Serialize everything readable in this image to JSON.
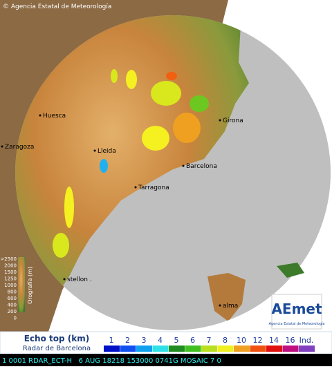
{
  "header": {
    "copyright": "© Agencia Estatal de Meteorología"
  },
  "map": {
    "cities": [
      "Huesca",
      "Zaragoza",
      "Lleida",
      "Barcelona",
      "Girona",
      "Tarragona",
      "stellon .",
      "alma"
    ]
  },
  "orography": {
    "title": "Orografía (m)",
    "levels": [
      ">2500",
      "2000",
      "1500",
      "1250",
      "1000",
      "800",
      "600",
      "400",
      "200",
      "0"
    ]
  },
  "legend": {
    "title": "Echo top (km)",
    "subtitle": "Radar de Barcelona",
    "levels": [
      "1",
      "2",
      "3",
      "4",
      "5",
      "6",
      "7",
      "8",
      "10",
      "12",
      "14",
      "16",
      "Ind."
    ]
  },
  "logo": {
    "name": "AEmet",
    "tagline": "Agencia Estatal de Meteorología"
  },
  "status_bar": {
    "text": "1 0001 RDAR_ECT-H   6 AUG 18218 153000 0741G MOSAIC 7 0"
  }
}
